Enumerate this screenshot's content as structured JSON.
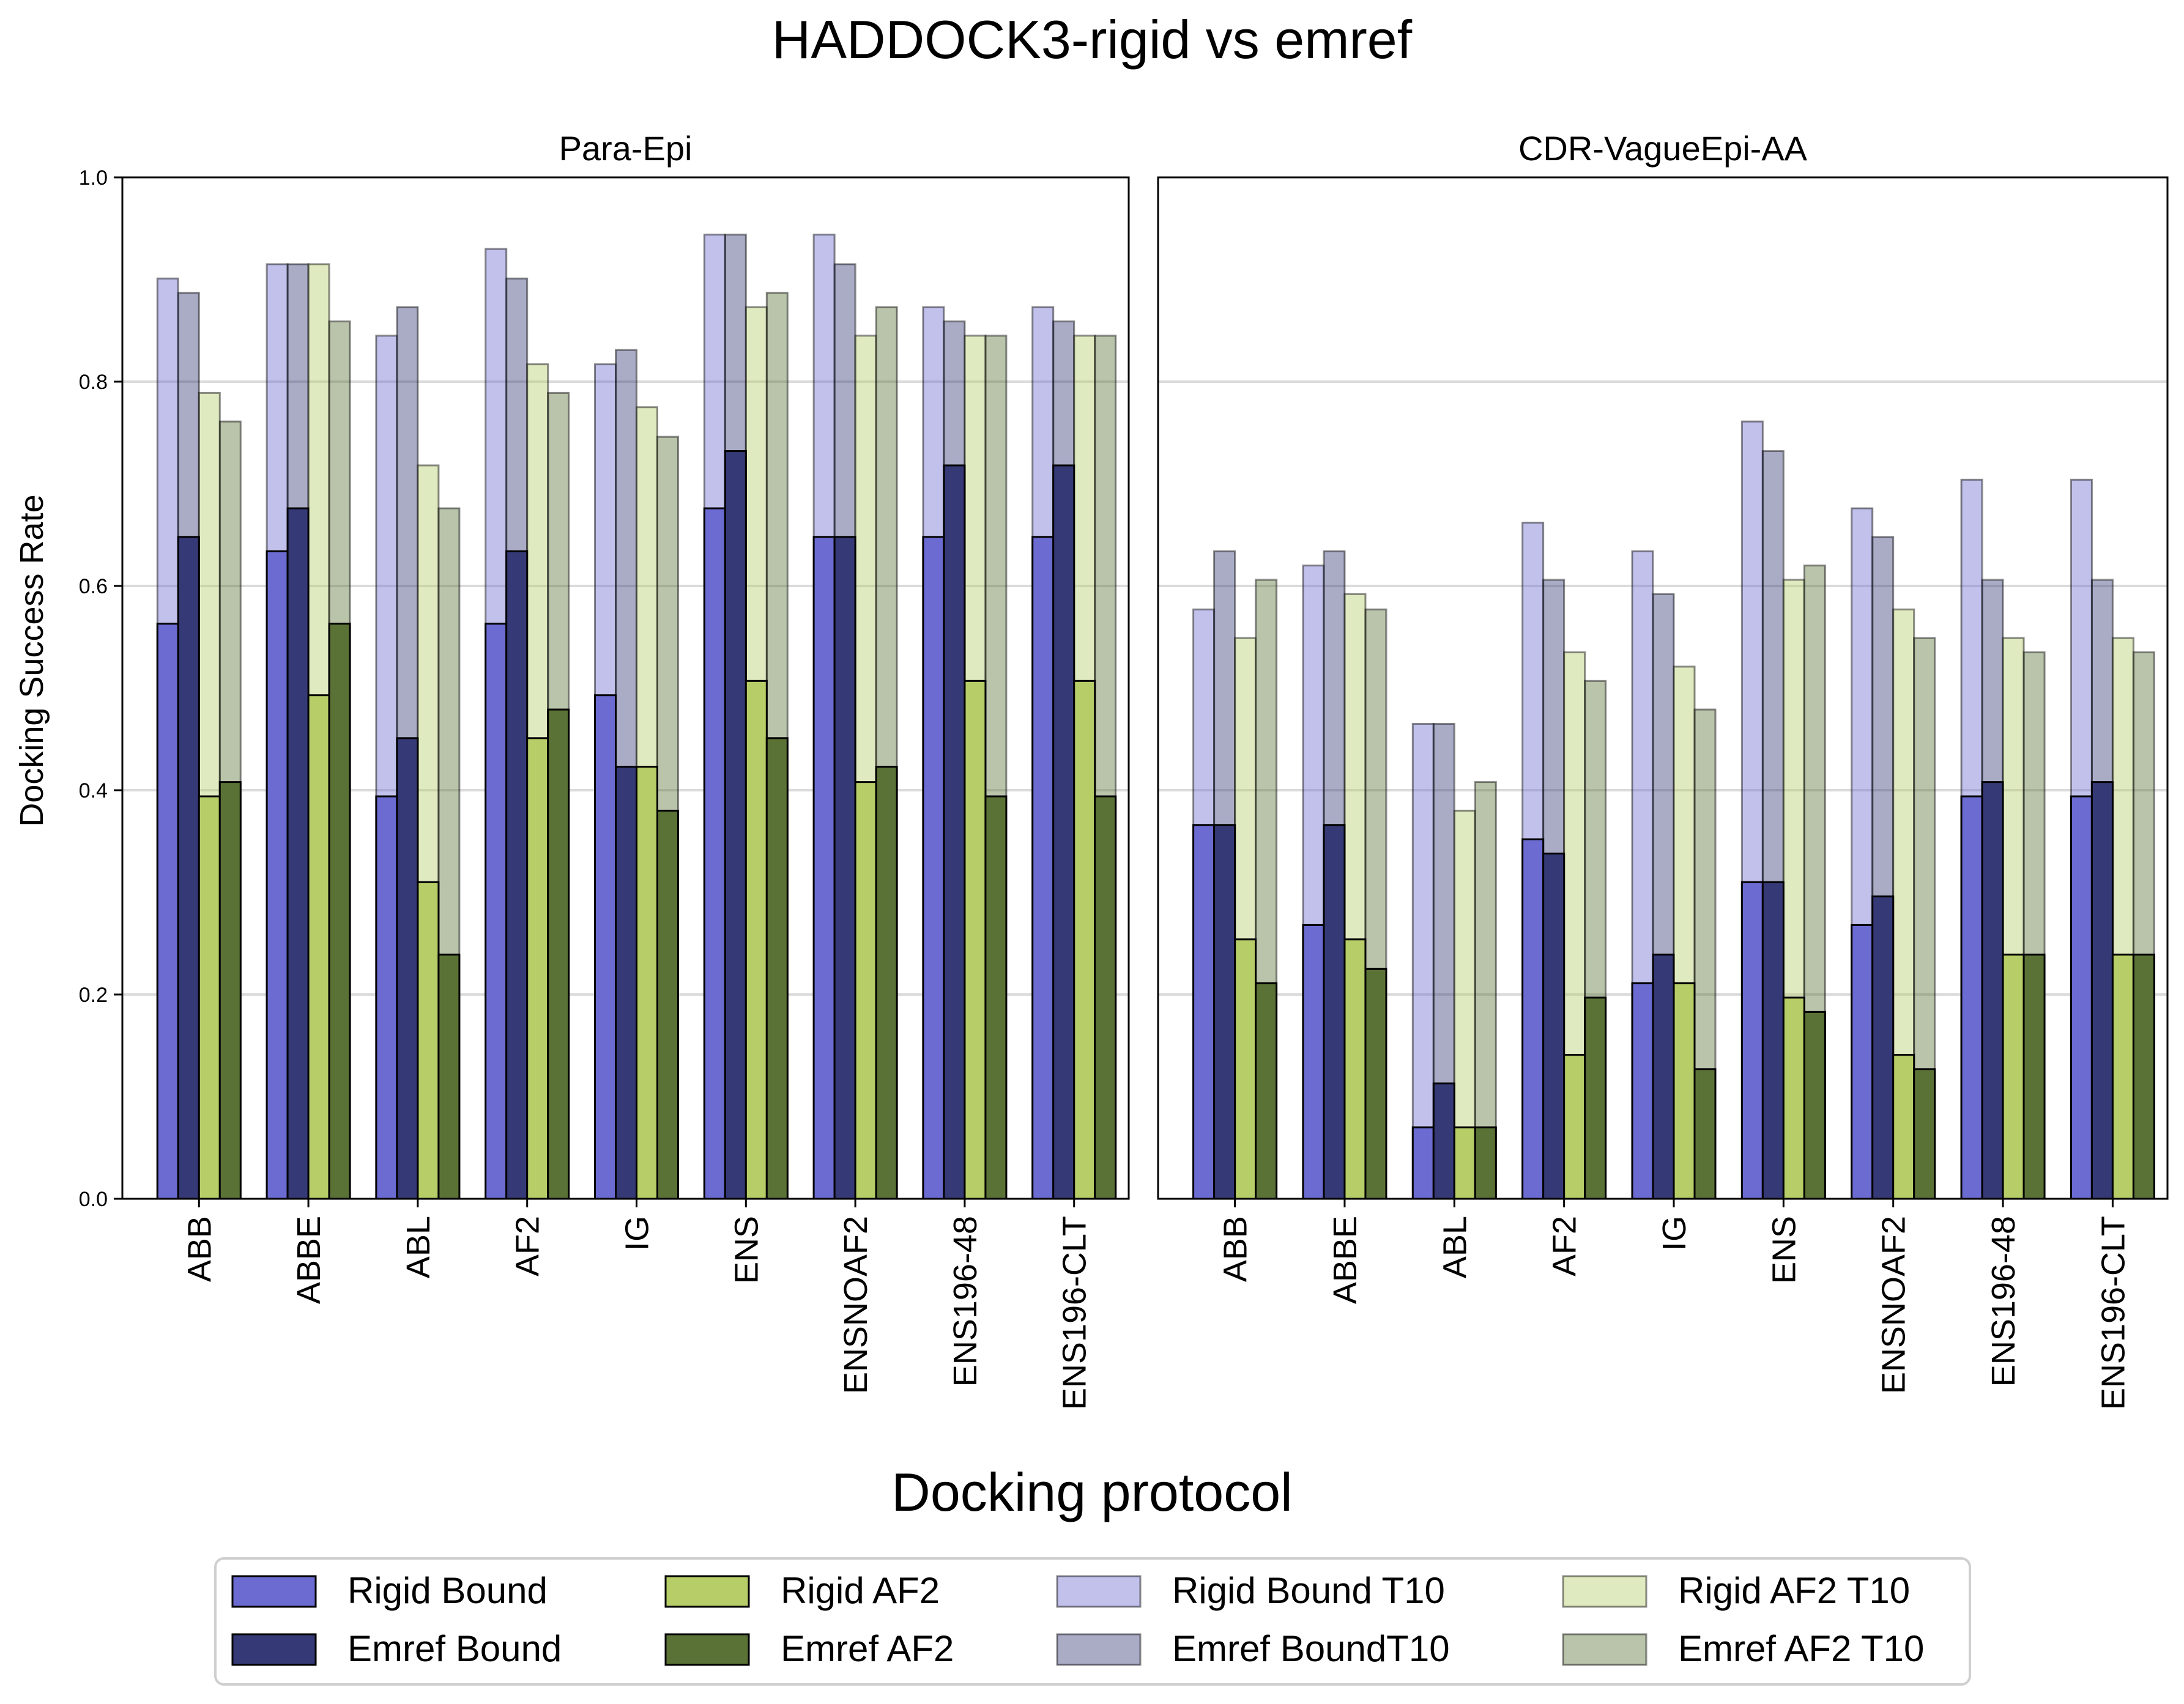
{
  "chart_data": {
    "type": "bar",
    "title": "HADDOCK3-rigid vs emref",
    "xlabel": "Docking protocol",
    "ylabel": "Docking Success Rate",
    "ylim": [
      0,
      1.0
    ],
    "yticks": [
      "0.0",
      "0.2",
      "0.4",
      "0.6",
      "0.8",
      "1.0"
    ],
    "grid": true,
    "legend_position": "bottom-center",
    "categories": [
      "ABB",
      "ABBE",
      "ABL",
      "AF2",
      "IG",
      "ENS",
      "ENSNOAF2",
      "ENS196-48",
      "ENS196-CLT"
    ],
    "legend": [
      {
        "key": "rigid_bound",
        "label": "Rigid Bound",
        "color": "#6b6bd1",
        "opacity": 1
      },
      {
        "key": "emref_bound",
        "label": "Emref Bound",
        "color": "#353a76",
        "opacity": 1
      },
      {
        "key": "rigid_af2",
        "label": "Rigid AF2",
        "color": "#b6cd68",
        "opacity": 1
      },
      {
        "key": "emref_af2",
        "label": "Emref AF2",
        "color": "#5b7236",
        "opacity": 1
      },
      {
        "key": "rigid_bound_t10",
        "label": "Rigid Bound T10",
        "color": "#6b6bd1",
        "opacity": 0.42
      },
      {
        "key": "emref_bound_t10",
        "label": "Emref BoundT10",
        "color": "#353a76",
        "opacity": 0.42
      },
      {
        "key": "rigid_af2_t10",
        "label": "Rigid AF2 T10",
        "color": "#b6cd68",
        "opacity": 0.42
      },
      {
        "key": "emref_af2_t10",
        "label": "Emref AF2 T10",
        "color": "#5b7236",
        "opacity": 0.42
      }
    ],
    "panels": [
      {
        "title": "Para-Epi",
        "series": {
          "rigid_bound": [
            0.563,
            0.634,
            0.394,
            0.563,
            0.493,
            0.676,
            0.648,
            0.648,
            0.648
          ],
          "emref_bound": [
            0.648,
            0.676,
            0.451,
            0.634,
            0.423,
            0.732,
            0.648,
            0.718,
            0.718
          ],
          "rigid_af2": [
            0.394,
            0.493,
            0.31,
            0.451,
            0.423,
            0.507,
            0.408,
            0.507,
            0.507
          ],
          "emref_af2": [
            0.408,
            0.563,
            0.239,
            0.479,
            0.38,
            0.451,
            0.423,
            0.394,
            0.394
          ],
          "rigid_bound_t10": [
            0.901,
            0.915,
            0.845,
            0.93,
            0.817,
            0.944,
            0.944,
            0.873,
            0.873
          ],
          "emref_bound_t10": [
            0.887,
            0.915,
            0.873,
            0.901,
            0.831,
            0.944,
            0.915,
            0.859,
            0.859
          ],
          "rigid_af2_t10": [
            0.789,
            0.915,
            0.718,
            0.817,
            0.775,
            0.873,
            0.845,
            0.845,
            0.845
          ],
          "emref_af2_t10": [
            0.761,
            0.859,
            0.676,
            0.789,
            0.746,
            0.887,
            0.873,
            0.845,
            0.845
          ]
        }
      },
      {
        "title": "CDR-VagueEpi-AA",
        "series": {
          "rigid_bound": [
            0.366,
            0.268,
            0.07,
            0.352,
            0.211,
            0.31,
            0.268,
            0.394,
            0.394
          ],
          "emref_bound": [
            0.366,
            0.366,
            0.113,
            0.338,
            0.239,
            0.31,
            0.296,
            0.408,
            0.408
          ],
          "rigid_af2": [
            0.254,
            0.254,
            0.07,
            0.141,
            0.211,
            0.197,
            0.141,
            0.239,
            0.239
          ],
          "emref_af2": [
            0.211,
            0.225,
            0.07,
            0.197,
            0.127,
            0.183,
            0.127,
            0.239,
            0.239
          ],
          "rigid_bound_t10": [
            0.577,
            0.62,
            0.465,
            0.662,
            0.634,
            0.761,
            0.676,
            0.704,
            0.704
          ],
          "emref_bound_t10": [
            0.634,
            0.634,
            0.465,
            0.606,
            0.592,
            0.732,
            0.648,
            0.606,
            0.606
          ],
          "rigid_af2_t10": [
            0.549,
            0.592,
            0.38,
            0.535,
            0.521,
            0.606,
            0.577,
            0.549,
            0.549
          ],
          "emref_af2_t10": [
            0.606,
            0.577,
            0.408,
            0.507,
            0.479,
            0.62,
            0.549,
            0.535,
            0.535
          ]
        }
      }
    ]
  }
}
